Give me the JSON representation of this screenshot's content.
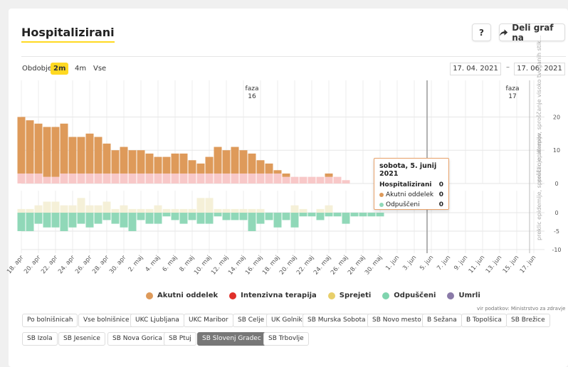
{
  "title": "Hospitalizirani",
  "buttons": {
    "help": "?",
    "share": "Deli graf na"
  },
  "period": {
    "label": "Obdobje",
    "options": [
      "2m",
      "4m",
      "Vse"
    ],
    "selected": "2m"
  },
  "dates": {
    "from": "17. 04. 2021",
    "to": "17. 06. 2021",
    "separator": "–"
  },
  "chart_data": {
    "type": "bar",
    "categories": [
      "18. apr",
      "19. apr",
      "20. apr",
      "21. apr",
      "22. apr",
      "23. apr",
      "24. apr",
      "25. apr",
      "26. apr",
      "27. apr",
      "28. apr",
      "29. apr",
      "30. apr",
      "1. maj",
      "2. maj",
      "3. maj",
      "4. maj",
      "5. maj",
      "6. maj",
      "7. maj",
      "8. maj",
      "9. maj",
      "10. maj",
      "11. maj",
      "12. maj",
      "13. maj",
      "14. maj",
      "15. maj",
      "16. maj",
      "17. maj",
      "18. maj",
      "19. maj",
      "20. maj",
      "21. maj",
      "22. maj",
      "23. maj",
      "24. maj",
      "25. maj",
      "26. maj",
      "27. maj",
      "28. maj",
      "29. maj",
      "30. maj",
      "31. maj",
      "1. jun",
      "2. jun",
      "3. jun",
      "4. jun",
      "5. jun",
      "6. jun",
      "7. jun",
      "8. jun",
      "9. jun",
      "10. jun",
      "11. jun",
      "12. jun",
      "13. jun",
      "14. jun",
      "15. jun",
      "16. jun",
      "17. jun"
    ],
    "x_tick_labels": [
      "18. apr",
      "20. apr",
      "22. apr",
      "24. apr",
      "26. apr",
      "28. apr",
      "30. apr",
      "2. maj",
      "4. maj",
      "6. maj",
      "8. maj",
      "10. maj",
      "12. maj",
      "14. maj",
      "16. maj",
      "18. maj",
      "20. maj",
      "22. maj",
      "24. maj",
      "26. maj",
      "28. maj",
      "30. maj",
      "1. jun",
      "3. jun",
      "5. jun",
      "7. jun",
      "9. jun",
      "11. jun",
      "13. jun",
      "15. jun",
      "17. jun"
    ],
    "series_top": [
      {
        "name": "Akutni oddelek",
        "color": "#de9a5a",
        "values": [
          17,
          16,
          15,
          15,
          15,
          15,
          11,
          11,
          12,
          11,
          9,
          7,
          8,
          7,
          7,
          6,
          5,
          5,
          6,
          6,
          4,
          3,
          5,
          8,
          7,
          8,
          7,
          6,
          4,
          3,
          1,
          1,
          0,
          0,
          0,
          0,
          1,
          0,
          0,
          0,
          0,
          0,
          0,
          0,
          0,
          0,
          0,
          0,
          0,
          0,
          0,
          0,
          0,
          0,
          0,
          0,
          0,
          0,
          0,
          0,
          0
        ]
      },
      {
        "name": "Intenzivna terapija",
        "color": "#f8c8c8",
        "values": [
          3,
          3,
          3,
          2,
          2,
          3,
          3,
          3,
          3,
          3,
          3,
          3,
          3,
          3,
          3,
          3,
          3,
          3,
          3,
          3,
          3,
          3,
          3,
          3,
          3,
          3,
          3,
          3,
          3,
          3,
          3,
          2,
          2,
          2,
          2,
          2,
          2,
          2,
          1,
          0,
          0,
          0,
          0,
          0,
          0,
          0,
          0,
          0,
          0,
          0,
          0,
          0,
          0,
          0,
          0,
          0,
          0,
          0,
          0,
          0,
          0
        ]
      }
    ],
    "series_bottom": [
      {
        "name": "Sprejeti",
        "color": "#f5f0d8",
        "values": [
          1,
          1,
          2,
          3,
          3,
          2,
          2,
          4,
          2,
          2,
          3,
          1,
          2,
          1,
          1,
          1,
          2,
          1,
          1,
          1,
          1,
          4,
          4,
          1,
          1,
          1,
          1,
          1,
          1,
          0,
          0,
          0,
          2,
          1,
          0,
          1,
          2,
          0,
          0,
          0,
          0,
          0,
          0,
          0,
          0,
          0,
          0,
          0,
          0,
          0,
          0,
          0,
          0,
          0,
          0,
          0,
          0,
          0,
          0,
          0,
          0
        ]
      },
      {
        "name": "Odpuščeni",
        "color": "#90d8b8",
        "values": [
          -5,
          -5,
          -3,
          -4,
          -4,
          -5,
          -4,
          -3,
          -4,
          -3,
          -2,
          -3,
          -4,
          -5,
          -2,
          -3,
          -3,
          -1,
          -2,
          -3,
          -2,
          -3,
          -3,
          -1,
          -2,
          -2,
          -2,
          -5,
          -3,
          -2,
          -4,
          -2,
          -4,
          -1,
          -1,
          -2,
          -1,
          -1,
          -3,
          -1,
          -1,
          -1,
          -1,
          0,
          0,
          0,
          0,
          0,
          0,
          0,
          0,
          0,
          0,
          0,
          0,
          0,
          0,
          0,
          0,
          0,
          0
        ]
      }
    ],
    "y_top": {
      "ticks": [
        0,
        10,
        20
      ],
      "ylim": [
        0,
        31
      ]
    },
    "y_bottom": {
      "ticks": [
        -10,
        -5,
        0
      ],
      "ylim": [
        -11,
        6
      ]
    },
    "phases": [
      {
        "label_line1": "faza",
        "label_line2": "16",
        "at": "15. maj"
      },
      {
        "label_line1": "faza",
        "label_line2": "17",
        "at": "14. jun"
      }
    ],
    "annotation": "preklic epidemije, sproščanje ukrepov",
    "annotation_upper": "preklic epidemije, sproščanje visoko tveganih stik...",
    "grid": true
  },
  "tooltip": {
    "title": "sobota, 5. junij 2021",
    "rows": [
      {
        "label": "Hospitalizirani",
        "value": "0",
        "bold": true
      },
      {
        "label": "Akutni oddelek",
        "value": "0",
        "color": "#de9a5a"
      },
      {
        "label": "Odpuščeni",
        "value": "0",
        "color": "#90d8b8"
      }
    ]
  },
  "legend": [
    {
      "label": "Akutni oddelek",
      "color": "#de9a5a"
    },
    {
      "label": "Intenzivna terapija",
      "color": "#e0302a"
    },
    {
      "label": "Sprejeti",
      "color": "#e8cf6a"
    },
    {
      "label": "Odpuščeni",
      "color": "#7fd4ae"
    },
    {
      "label": "Umrli",
      "color": "#8a7aa8"
    }
  ],
  "source": "vir podatkov: Ministrstvo za zdravje",
  "hospitals": [
    [
      "Po bolnišnicah",
      "Vse bolnišnice",
      "UKC Ljubljana",
      "UKC Maribor",
      "SB Celje",
      "UK Golnik",
      "SB Murska Sobota",
      "SB Novo mesto",
      "B Sežana",
      "B Topolšica",
      "SB Brežice"
    ],
    [
      "SB Izola",
      "SB Jesenice",
      "SB Nova Gorica",
      "SB Ptuj",
      "SB Slovenj Gradec",
      "SB Trbovlje"
    ]
  ],
  "hospital_selected": "SB Slovenj Gradec"
}
